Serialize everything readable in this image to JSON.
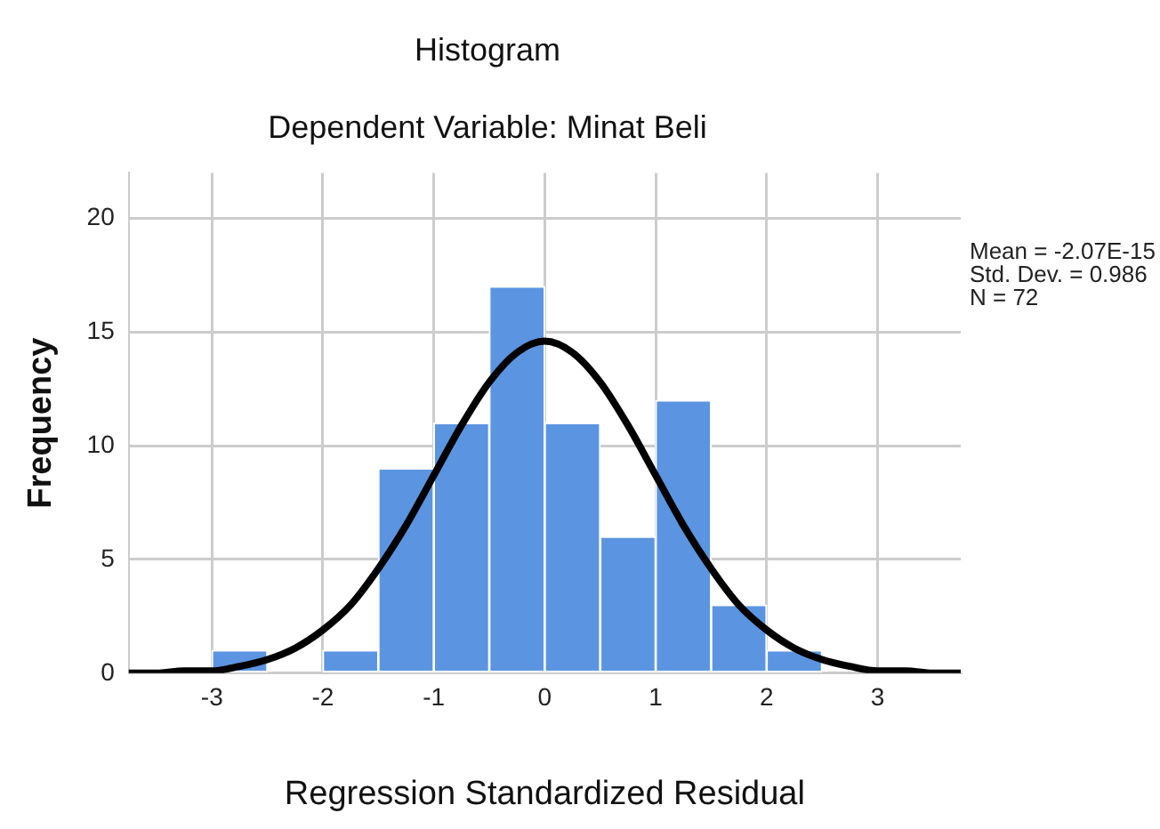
{
  "chart_data": {
    "type": "histogram",
    "title": "Histogram",
    "subtitle": "Dependent Variable: Minat Beli",
    "xlabel": "Regression Standardized Residual",
    "ylabel": "Frequency",
    "series": [
      {
        "color": "#5b95e1",
        "bins": [
          -3,
          -2.5,
          -2,
          -1.5,
          -1,
          -0.5,
          0,
          0.5,
          1,
          1.5,
          2,
          2.5
        ],
        "values": [
          1,
          0,
          1,
          9,
          11,
          17,
          11,
          6,
          12,
          3,
          1
        ]
      },
      {
        "type": "line",
        "color": "#000000",
        "x": [
          -3.75,
          -3.5,
          -3.25,
          -3,
          -2.75,
          -2.5,
          -2.25,
          -2,
          -1.75,
          -1.5,
          -1.25,
          -1,
          -0.75,
          -0.5,
          -0.25,
          0,
          0.25,
          0.5,
          0.75,
          1,
          1.25,
          1.5,
          1.75,
          2,
          2.25,
          2.5,
          2.75,
          3,
          3.25,
          3.5,
          3.75
        ],
        "values": [
          0,
          0,
          0.1,
          0.1,
          0.3,
          0.6,
          1.1,
          1.9,
          3,
          4.6,
          6.5,
          8.7,
          10.9,
          12.8,
          14.1,
          14.6,
          14.1,
          12.8,
          10.9,
          8.7,
          6.5,
          4.6,
          3,
          1.9,
          1.1,
          0.6,
          0.3,
          0.1,
          0.1,
          0,
          0
        ]
      }
    ],
    "marker": "none",
    "grid": true,
    "xlim": [
      -3.75,
      3.75
    ],
    "xticks": [
      -3,
      -2,
      -1,
      0,
      1,
      2,
      3
    ],
    "ylim": [
      0,
      22
    ],
    "yticks": [
      0,
      5,
      10,
      15,
      20
    ],
    "annotations": [
      "Mean = -2.07E-15",
      "Std. Dev. = 0.986",
      "N = 72"
    ]
  }
}
